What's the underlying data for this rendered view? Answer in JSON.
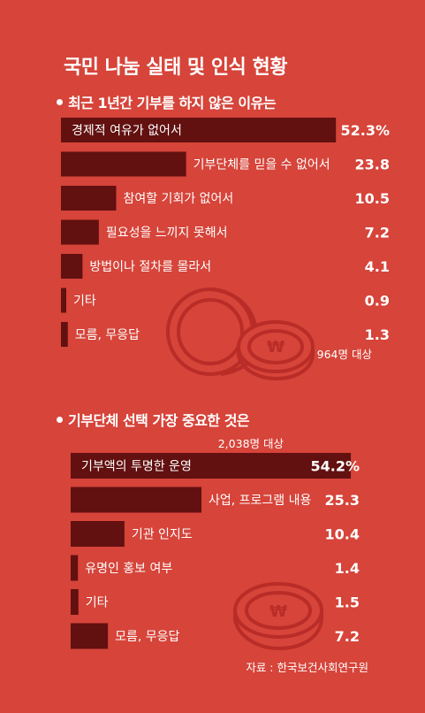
{
  "colors": {
    "background": "#d6443a",
    "bar": "#621010",
    "text": "#ffffff",
    "coin": "#b92c27"
  },
  "main_title": "국민 나눔 실태 및 인식 현황",
  "chart_data": [
    {
      "type": "bar",
      "title": "최근 1년간 기부를 하지 않은 이유는",
      "categories": [
        "경제적 여유가 없어서",
        "기부단체를 믿을 수 없어서",
        "참여할 기회가 없어서",
        "필요성을 느끼지 못해서",
        "방법이나 절차를 몰라서",
        "기타",
        "모름, 무응답"
      ],
      "values": [
        52.3,
        23.8,
        10.5,
        7.2,
        4.1,
        0.9,
        1.3
      ],
      "value_labels": [
        "52.3%",
        "23.8",
        "10.5",
        "7.2",
        "4.1",
        "0.9",
        "1.3"
      ],
      "note": "964명 대상"
    },
    {
      "type": "bar",
      "title": "기부단체 선택 가장 중요한 것은",
      "categories": [
        "기부액의 투명한 운영",
        "사업, 프로그램 내용",
        "기관 인지도",
        "유명인 홍보 여부",
        "기타",
        "모름, 무응답"
      ],
      "values": [
        54.2,
        25.3,
        10.4,
        1.4,
        1.5,
        7.2
      ],
      "value_labels": [
        "54.2%",
        "25.3",
        "10.4",
        "1.4",
        "1.5",
        "7.2"
      ],
      "note": "2,038명 대상"
    }
  ],
  "source": "자료 : 한국보건사회연구원"
}
